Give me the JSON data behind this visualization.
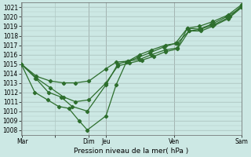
{
  "title": "",
  "xlabel": "Pression niveau de la mer( hPa )",
  "ylabel": "",
  "background_color": "#cce8e4",
  "grid_color": "#b0c8c4",
  "line_color": "#2d6e2d",
  "xlim": [
    0,
    13
  ],
  "ylim": [
    1007.5,
    1021.5
  ],
  "yticks": [
    1008,
    1009,
    1010,
    1011,
    1012,
    1013,
    1014,
    1015,
    1016,
    1017,
    1018,
    1019,
    1020,
    1021
  ],
  "vline_positions": [
    0.05,
    4.0,
    5.0,
    9.0,
    13.0
  ],
  "xtick_positions": [
    0.05,
    2.0,
    4.0,
    5.0,
    9.0,
    13.0
  ],
  "xtick_labels": [
    "Mar",
    "",
    "Dim",
    "Jeu",
    "Ven",
    "Sam"
  ],
  "lines": [
    {
      "x": [
        0,
        0.9,
        1.7,
        2.5,
        3.2,
        4.0,
        5.0,
        5.6,
        6.3,
        7.0,
        7.7,
        8.5,
        9.2,
        9.8,
        10.5,
        11.2,
        12.1,
        13.0
      ],
      "y": [
        1015,
        1013.7,
        1013.2,
        1013.0,
        1013.0,
        1013.2,
        1014.5,
        1015.2,
        1015.3,
        1015.5,
        1016.0,
        1016.5,
        1016.7,
        1018.8,
        1018.7,
        1019.2,
        1020.0,
        1021.0
      ]
    },
    {
      "x": [
        0,
        0.9,
        1.7,
        2.5,
        3.2,
        4.0,
        5.0,
        5.7,
        6.4,
        7.1,
        7.8,
        8.5,
        9.2,
        9.9,
        10.6,
        11.3,
        12.2,
        13.0
      ],
      "y": [
        1015,
        1013.5,
        1012.5,
        1011.5,
        1011.0,
        1011.2,
        1013.0,
        1014.8,
        1015.1,
        1015.4,
        1015.8,
        1016.3,
        1016.6,
        1018.5,
        1018.5,
        1019.0,
        1019.8,
        1021.0
      ]
    },
    {
      "x": [
        0,
        0.85,
        1.6,
        2.35,
        3.0,
        3.9,
        5.0,
        5.7,
        6.3,
        7.0,
        7.7,
        8.5,
        9.2,
        9.9,
        10.6,
        11.4,
        12.3,
        13.0
      ],
      "y": [
        1015,
        1013.5,
        1012.0,
        1011.5,
        1010.5,
        1010.0,
        1012.8,
        1015.0,
        1015.3,
        1016.0,
        1016.5,
        1017.0,
        1017.2,
        1018.5,
        1018.7,
        1019.2,
        1020.0,
        1021.2
      ]
    },
    {
      "x": [
        0,
        0.8,
        1.55,
        2.2,
        2.8,
        3.4,
        3.9,
        5.0,
        5.6,
        6.2,
        6.9,
        7.6,
        8.4,
        9.1,
        9.8,
        10.5,
        11.3,
        12.2,
        13.0
      ],
      "y": [
        1015,
        1012.0,
        1011.2,
        1010.5,
        1010.3,
        1009.0,
        1008.0,
        1009.5,
        1012.8,
        1015.2,
        1015.7,
        1016.2,
        1016.8,
        1017.2,
        1018.8,
        1019.0,
        1019.5,
        1020.2,
        1021.3
      ]
    }
  ],
  "marker": "D",
  "markersize": 2.2,
  "linewidth": 0.9
}
